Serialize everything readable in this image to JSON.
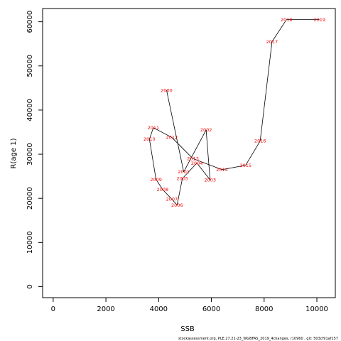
{
  "chart_data": {
    "type": "line",
    "xlabel": "SSB",
    "ylabel": "R(age 1)",
    "xlim": [
      -400,
      10700
    ],
    "ylim": [
      -2500,
      63000
    ],
    "x_ticks": [
      "0",
      "2000",
      "4000",
      "6000",
      "8000",
      "10000"
    ],
    "x_tick_values": [
      0,
      2000,
      4000,
      6000,
      8000,
      10000
    ],
    "y_ticks": [
      "0",
      "10000",
      "20000",
      "30000",
      "40000",
      "50000",
      "60000"
    ],
    "y_tick_values": [
      0,
      10000,
      20000,
      30000,
      40000,
      50000,
      60000
    ],
    "grid": false,
    "line_color": "#000000",
    "label_color": "#ff0000",
    "points": [
      {
        "year": "2000",
        "x": 4300,
        "y": 44500
      },
      {
        "year": "2001",
        "x": 4950,
        "y": 26000
      },
      {
        "year": "2002",
        "x": 5800,
        "y": 35500
      },
      {
        "year": "2003",
        "x": 5950,
        "y": 24200
      },
      {
        "year": "2004",
        "x": 5450,
        "y": 28000
      },
      {
        "year": "2005",
        "x": 4900,
        "y": 24500
      },
      {
        "year": "2006",
        "x": 4700,
        "y": 18500
      },
      {
        "year": "2007",
        "x": 4500,
        "y": 19800
      },
      {
        "year": "2008",
        "x": 4150,
        "y": 22000
      },
      {
        "year": "2009",
        "x": 3900,
        "y": 24300
      },
      {
        "year": "2010",
        "x": 3650,
        "y": 33400
      },
      {
        "year": "2011",
        "x": 3800,
        "y": 36000
      },
      {
        "year": "2012",
        "x": 4500,
        "y": 33800
      },
      {
        "year": "2013",
        "x": 5300,
        "y": 29000
      },
      {
        "year": "2014",
        "x": 6400,
        "y": 26500
      },
      {
        "year": "2015",
        "x": 7300,
        "y": 27500
      },
      {
        "year": "2016",
        "x": 7850,
        "y": 33000
      },
      {
        "year": "2017",
        "x": 8300,
        "y": 55500
      },
      {
        "year": "2018",
        "x": 8850,
        "y": 60500
      },
      {
        "year": "2019",
        "x": 10100,
        "y": 60500
      }
    ]
  },
  "footer": "stockassessment.org,  PLE.27.21-23_WGBFAS_2019_4changes,  r10960 ,  git: 503cf91af157"
}
